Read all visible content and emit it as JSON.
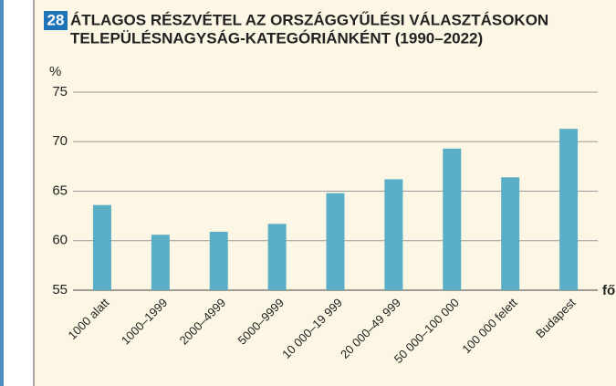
{
  "chart_data": {
    "type": "bar",
    "number": "28",
    "title": [
      "ÁTLAGOS RÉSZVÉTEL AZ ORSZÁGGYŰLÉSI VÁLASZTÁSOKON",
      "TELEPÜLÉSNAGYSÁG-KATEGÓRIÁNKÉNT (1990–2022)"
    ],
    "y_label": "%",
    "x_label": "fő",
    "categories": [
      "1000 alatt",
      "1000–1999",
      "2000–4999",
      "5000–9999",
      "10 000–19 999",
      "20 000–49 999",
      "50 000–100 000",
      "100 000 felett",
      "Budapest"
    ],
    "values": [
      63.6,
      60.6,
      60.9,
      61.7,
      64.8,
      66.2,
      69.3,
      66.4,
      71.3
    ],
    "color": "#5aaec6",
    "ylim": [
      55,
      75
    ],
    "yticks": [
      55,
      60,
      65,
      70,
      75
    ],
    "grid": true
  }
}
